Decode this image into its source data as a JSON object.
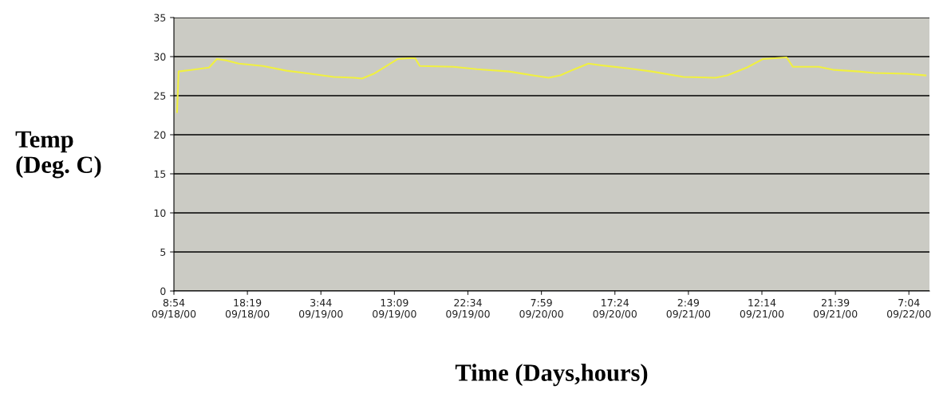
{
  "chart_data": {
    "type": "line",
    "ylabel": "Temp\n(Deg. C)",
    "xlabel": "Time (Days,hours)",
    "x": [
      "2000-09-18T09:18",
      "2000-09-18T09:30",
      "2000-09-18T11:06",
      "2000-09-18T13:24",
      "2000-09-18T14:24",
      "2000-09-18T15:42",
      "2000-09-18T17:12",
      "2000-09-18T20:18",
      "2000-09-18T23:18",
      "2000-09-19T02:24",
      "2000-09-19T05:24",
      "2000-09-19T08:00",
      "2000-09-19T09:00",
      "2000-09-19T10:30",
      "2000-09-19T12:36",
      "2000-09-19T13:36",
      "2000-09-19T15:06",
      "2000-09-19T15:48",
      "2000-09-19T16:24",
      "2000-09-19T20:42",
      "2000-09-19T23:42",
      "2000-09-20T03:48",
      "2000-09-20T06:54",
      "2000-09-20T08:54",
      "2000-09-20T10:24",
      "2000-09-20T12:00",
      "2000-09-20T14:00",
      "2000-09-20T15:30",
      "2000-09-20T19:06",
      "2000-09-20T22:06",
      "2000-09-21T02:12",
      "2000-09-21T06:18",
      "2000-09-21T07:48",
      "2000-09-21T10:18",
      "2000-09-21T12:24",
      "2000-09-21T15:24",
      "2000-09-21T16:12",
      "2000-09-21T19:30",
      "2000-09-21T21:30",
      "2000-09-22T00:36",
      "2000-09-22T02:36",
      "2000-09-22T06:42",
      "2000-09-22T09:12"
    ],
    "series": [
      {
        "color": "#f0f040",
        "values": [
          22.9,
          28.1,
          28.3,
          28.6,
          29.7,
          29.5,
          29.1,
          28.8,
          28.2,
          27.8,
          27.4,
          27.3,
          27.2,
          27.8,
          29.1,
          29.7,
          29.8,
          29.8,
          28.8,
          28.7,
          28.4,
          28.1,
          27.6,
          27.3,
          27.6,
          28.3,
          29.1,
          28.9,
          28.5,
          28.1,
          27.4,
          27.3,
          27.6,
          28.6,
          29.7,
          29.9,
          28.7,
          28.7,
          28.3,
          28.1,
          27.9,
          27.8,
          27.6
        ]
      }
    ],
    "ylim": [
      0,
      35
    ],
    "yticks": [
      0,
      5,
      10,
      15,
      20,
      25,
      30,
      35
    ],
    "xlim": [
      "2000-09-18T08:54",
      "2000-09-22T09:42"
    ],
    "xticks": [
      {
        "value": "2000-09-18T08:54",
        "label": "8:54\n09/18/00"
      },
      {
        "value": "2000-09-18T18:19",
        "label": "18:19\n09/18/00"
      },
      {
        "value": "2000-09-19T03:44",
        "label": "3:44\n09/19/00"
      },
      {
        "value": "2000-09-19T13:09",
        "label": "13:09\n09/19/00"
      },
      {
        "value": "2000-09-19T22:34",
        "label": "22:34\n09/19/00"
      },
      {
        "value": "2000-09-20T07:59",
        "label": "7:59\n09/20/00"
      },
      {
        "value": "2000-09-20T17:24",
        "label": "17:24\n09/20/00"
      },
      {
        "value": "2000-09-21T02:49",
        "label": "2:49\n09/21/00"
      },
      {
        "value": "2000-09-21T12:14",
        "label": "12:14\n09/21/00"
      },
      {
        "value": "2000-09-21T21:39",
        "label": "21:39\n09/21/00"
      },
      {
        "value": "2000-09-22T07:04",
        "label": "7:04\n09/22/00"
      }
    ],
    "grid": "y",
    "marker": "none",
    "line_style": "solid"
  }
}
